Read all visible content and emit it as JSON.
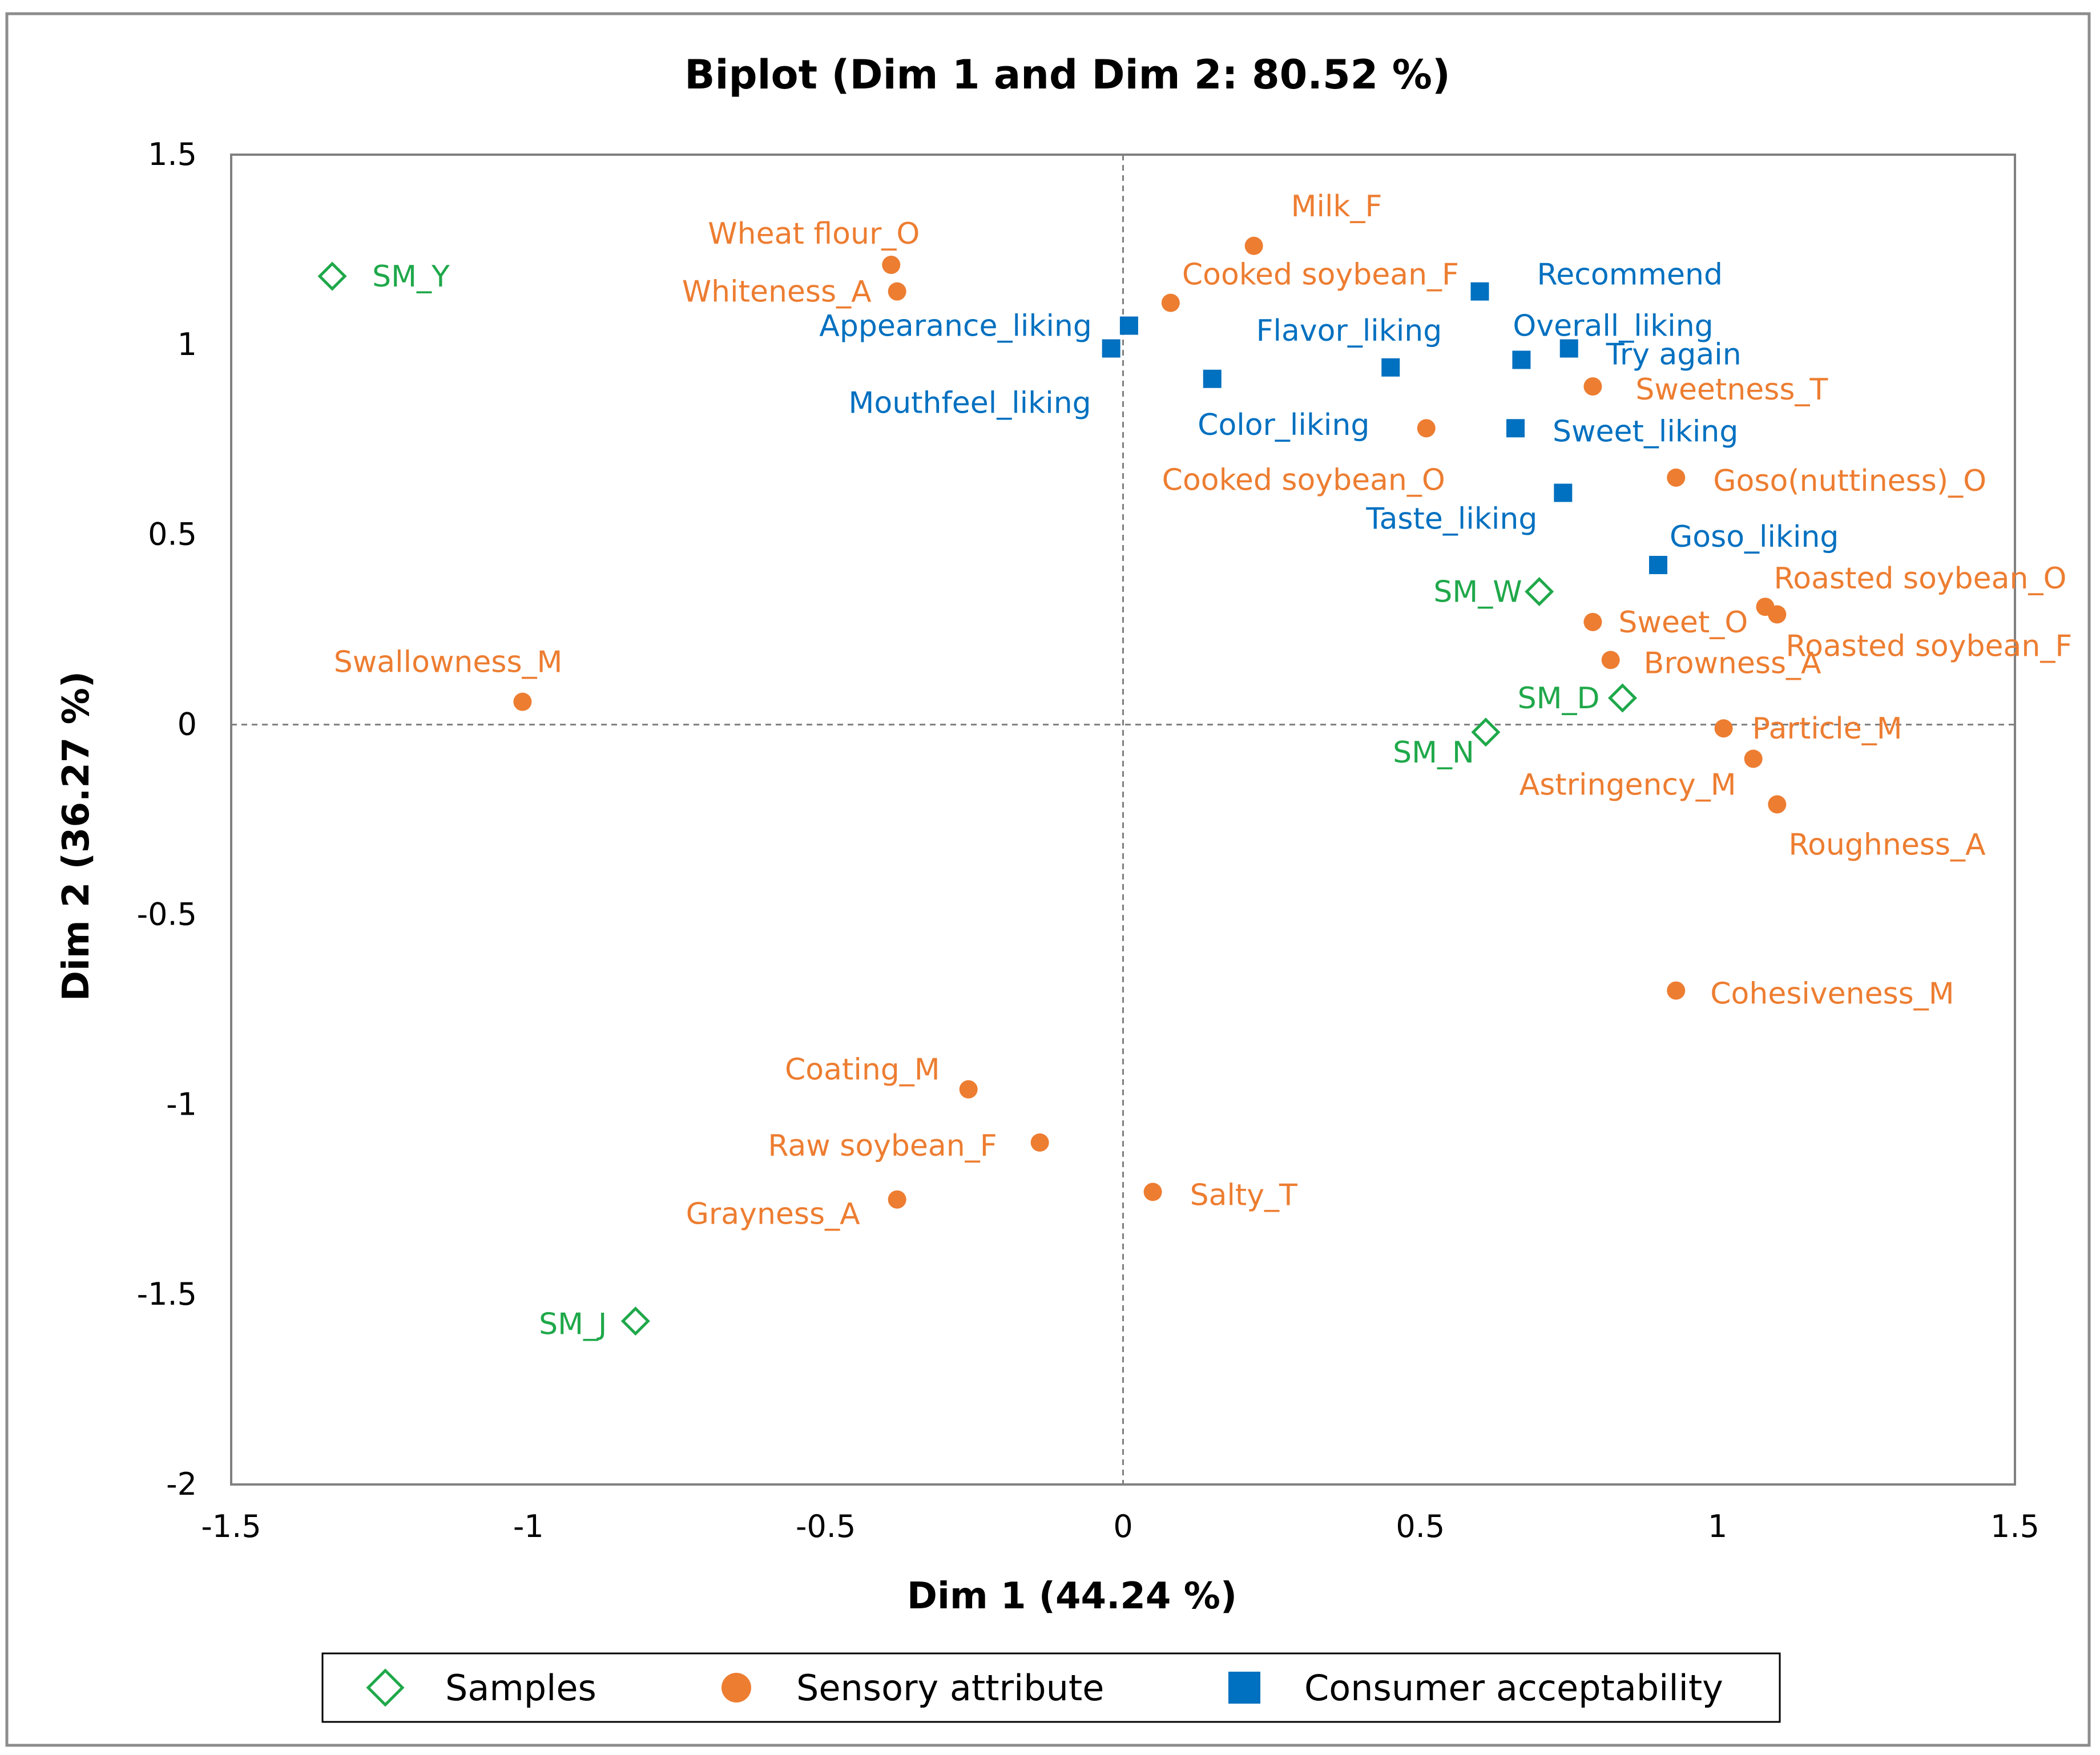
{
  "chart_data": {
    "type": "scatter",
    "title": "Biplot (Dim 1 and Dim 2: 80.52 %)",
    "xlabel": "Dim 1 (44.24 %)",
    "ylabel": "Dim 2 (36.27 %)",
    "xlim": [
      -1.5,
      1.5
    ],
    "ylim": [
      -2,
      1.5
    ],
    "xticks": [
      -1.5,
      -1,
      -0.5,
      0,
      0.5,
      1,
      1.5
    ],
    "yticks": [
      -2,
      -1.5,
      -1,
      -0.5,
      0,
      0.5,
      1,
      1.5
    ],
    "xtick_labels": [
      "-1.5",
      "-1",
      "-0.5",
      "0",
      "0.5",
      "1",
      "1.5"
    ],
    "ytick_labels": [
      "-2",
      "-1.5",
      "-1",
      "-0.5",
      "0",
      "0.5",
      "1",
      "1.5"
    ],
    "grid": false,
    "reference_lines": {
      "x": 0,
      "y": 0
    },
    "legend_position": "bottom",
    "series": [
      {
        "name": "Samples",
        "marker": "diamond-open",
        "color": "#1fa84a",
        "points": [
          {
            "label": "SM_Y",
            "x": -1.33,
            "y": 1.18
          },
          {
            "label": "SM_W",
            "x": 0.7,
            "y": 0.35
          },
          {
            "label": "SM_D",
            "x": 0.84,
            "y": 0.07
          },
          {
            "label": "SM_N",
            "x": 0.61,
            "y": -0.02
          },
          {
            "label": "SM_J",
            "x": -0.82,
            "y": -1.57
          }
        ]
      },
      {
        "name": "Sensory attribute",
        "marker": "circle",
        "color": "#ed7d31",
        "points": [
          {
            "label": "Wheat flour_O",
            "x": -0.39,
            "y": 1.21
          },
          {
            "label": "Whiteness_A",
            "x": -0.38,
            "y": 1.14
          },
          {
            "label": "Milk_F",
            "x": 0.22,
            "y": 1.26
          },
          {
            "label": "Cooked soybean_F",
            "x": 0.08,
            "y": 1.11
          },
          {
            "label": "Sweetness_T",
            "x": 0.79,
            "y": 0.89
          },
          {
            "label": "Cooked soybean_O",
            "x": 0.51,
            "y": 0.78
          },
          {
            "label": "Goso(nuttiness)_O",
            "x": 0.93,
            "y": 0.65
          },
          {
            "label": "Roasted soybean_O",
            "x": 1.08,
            "y": 0.31
          },
          {
            "label": "Roasted soybean_F",
            "x": 1.1,
            "y": 0.29
          },
          {
            "label": "Sweet_O",
            "x": 0.79,
            "y": 0.27
          },
          {
            "label": "Browness_A",
            "x": 0.82,
            "y": 0.17
          },
          {
            "label": "Particle_M",
            "x": 1.01,
            "y": -0.01
          },
          {
            "label": "Astringency_M",
            "x": 1.06,
            "y": -0.09
          },
          {
            "label": "Roughness_A",
            "x": 1.1,
            "y": -0.21
          },
          {
            "label": "Cohesiveness_M",
            "x": 0.93,
            "y": -0.7
          },
          {
            "label": "Swallowness_M",
            "x": -1.01,
            "y": 0.06
          },
          {
            "label": "Coating_M",
            "x": -0.26,
            "y": -0.96
          },
          {
            "label": "Raw soybean_F",
            "x": -0.14,
            "y": -1.1
          },
          {
            "label": "Grayness_A",
            "x": -0.38,
            "y": -1.25
          },
          {
            "label": "Salty_T",
            "x": 0.05,
            "y": -1.23
          }
        ]
      },
      {
        "name": "Consumer acceptability",
        "marker": "square",
        "color": "#0070c0",
        "points": [
          {
            "label": "Recommend",
            "x": 0.6,
            "y": 1.14
          },
          {
            "label": "Appearance_liking",
            "x": 0.01,
            "y": 1.05
          },
          {
            "label": "Mouthfeel_liking",
            "x": -0.02,
            "y": 0.99
          },
          {
            "label": "Flavor_liking",
            "x": 0.45,
            "y": 0.94
          },
          {
            "label": "Color_liking",
            "x": 0.15,
            "y": 0.91
          },
          {
            "label": "Overall_liking",
            "x": 0.67,
            "y": 0.96
          },
          {
            "label": "Try again",
            "x": 0.75,
            "y": 0.99
          },
          {
            "label": "Sweet_liking",
            "x": 0.66,
            "y": 0.78
          },
          {
            "label": "Taste_liking",
            "x": 0.74,
            "y": 0.61
          },
          {
            "label": "Goso_liking",
            "x": 0.9,
            "y": 0.42
          }
        ]
      }
    ]
  }
}
